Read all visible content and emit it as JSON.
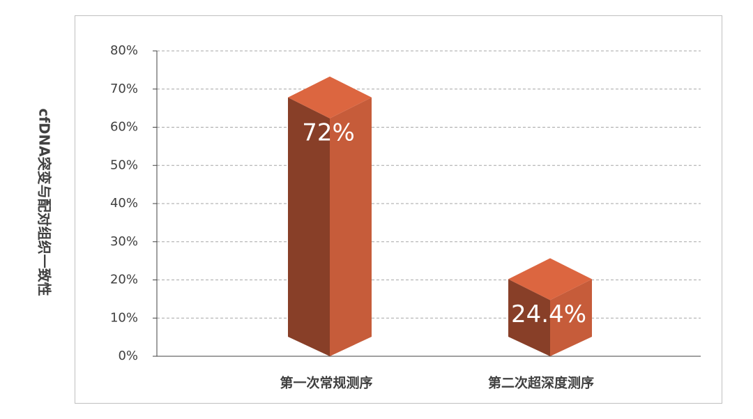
{
  "chart_data": {
    "type": "bar3d",
    "ylabel": "cfDNA突变与配对组织一致性",
    "categories": [
      "第一次常规测序",
      "第二次超深度测序"
    ],
    "values": [
      72,
      24.4
    ],
    "value_labels": [
      "72%",
      "24.4%"
    ],
    "color": "#dc6640",
    "ylim": [
      0,
      80
    ],
    "yticks": [
      {
        "value": 0,
        "label": "0%"
      },
      {
        "value": 10,
        "label": "10%"
      },
      {
        "value": 20,
        "label": "20%"
      },
      {
        "value": 30,
        "label": "30%"
      },
      {
        "value": 40,
        "label": "40%"
      },
      {
        "value": 50,
        "label": "50%"
      },
      {
        "value": 60,
        "label": "60%"
      },
      {
        "value": 70,
        "label": "70%"
      },
      {
        "value": 80,
        "label": "80%"
      }
    ],
    "grid": true
  }
}
